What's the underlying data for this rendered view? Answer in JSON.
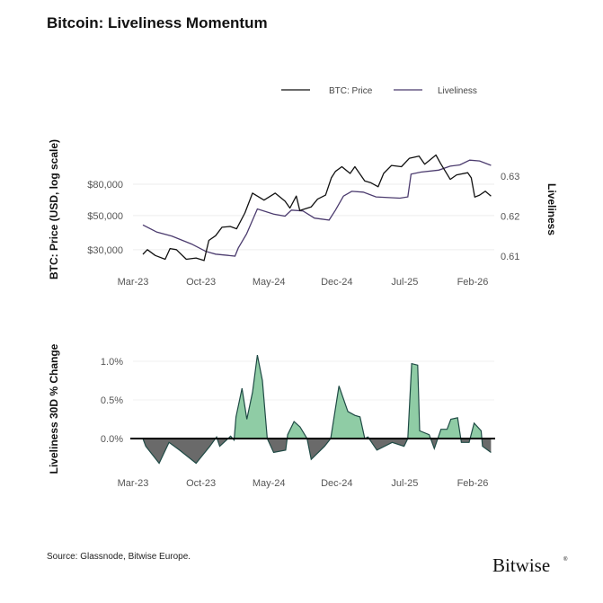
{
  "title": "Bitcoin: Liveliness Momentum",
  "source": "Source: Glassnode, Bitwise Europe.",
  "logo": "Bitwise",
  "colors": {
    "price": "#111111",
    "liveliness": "#4b3b6e",
    "positive": "#8fcca5",
    "negative": "#6a6a6a",
    "outline": "#1f4a45"
  },
  "chart_data": [
    {
      "type": "line",
      "legend": [
        "BTC: Price",
        "Liveliness"
      ],
      "legend_position": "top-right",
      "ylabel": "BTC: Price (USD, log scale)",
      "y2label": "Liveliness",
      "yscale": "log",
      "xticks": [
        "Mar-23",
        "Oct-23",
        "May-24",
        "Dec-24",
        "Jul-25",
        "Feb-26"
      ],
      "yticks": [
        "$30,000",
        "$50,000",
        "$80,000"
      ],
      "yticks_values": [
        30000,
        50000,
        80000
      ],
      "y2ticks": [
        "0.61",
        "0.62",
        "0.63"
      ],
      "y2ticks_values": [
        0.61,
        0.62,
        0.63
      ],
      "grid": "horizontal",
      "series": [
        {
          "name": "BTC: Price",
          "axis": "left",
          "points": [
            [
              "2023-04-01",
              28000
            ],
            [
              "2023-04-15",
              30000
            ],
            [
              "2023-05-10",
              27500
            ],
            [
              "2023-06-10",
              26000
            ],
            [
              "2023-06-25",
              30500
            ],
            [
              "2023-07-15",
              30000
            ],
            [
              "2023-08-15",
              26000
            ],
            [
              "2023-09-15",
              26500
            ],
            [
              "2023-10-10",
              25500
            ],
            [
              "2023-10-25",
              34500
            ],
            [
              "2023-11-15",
              37000
            ],
            [
              "2023-12-05",
              42000
            ],
            [
              "2023-12-31",
              42500
            ],
            [
              "2024-01-20",
              41000
            ],
            [
              "2024-02-15",
              52000
            ],
            [
              "2024-03-10",
              70000
            ],
            [
              "2024-04-15",
              63000
            ],
            [
              "2024-05-20",
              70000
            ],
            [
              "2024-06-20",
              62000
            ],
            [
              "2024-07-05",
              56000
            ],
            [
              "2024-07-25",
              67000
            ],
            [
              "2024-08-05",
              54000
            ],
            [
              "2024-09-10",
              57000
            ],
            [
              "2024-09-30",
              64000
            ],
            [
              "2024-10-25",
              68000
            ],
            [
              "2024-11-12",
              88000
            ],
            [
              "2024-11-25",
              97000
            ],
            [
              "2024-12-15",
              104000
            ],
            [
              "2025-01-10",
              94000
            ],
            [
              "2025-01-25",
              104000
            ],
            [
              "2025-02-25",
              84000
            ],
            [
              "2025-03-15",
              82000
            ],
            [
              "2025-04-08",
              77000
            ],
            [
              "2025-04-25",
              94000
            ],
            [
              "2025-05-20",
              106000
            ],
            [
              "2025-06-20",
              104000
            ],
            [
              "2025-07-15",
              118000
            ],
            [
              "2025-08-14",
              122000
            ],
            [
              "2025-09-01",
              108000
            ],
            [
              "2025-10-06",
              124000
            ],
            [
              "2025-10-20",
              110000
            ],
            [
              "2025-11-20",
              86000
            ],
            [
              "2025-12-10",
              92000
            ],
            [
              "2026-01-14",
              95000
            ],
            [
              "2026-01-25",
              88000
            ],
            [
              "2026-02-05",
              66000
            ],
            [
              "2026-02-20",
              68000
            ],
            [
              "2026-03-10",
              72000
            ],
            [
              "2026-03-28",
              67000
            ]
          ]
        },
        {
          "name": "Liveliness",
          "axis": "right",
          "points": [
            [
              "2023-04-01",
              0.6178
            ],
            [
              "2023-05-15",
              0.616
            ],
            [
              "2023-07-01",
              0.615
            ],
            [
              "2023-09-01",
              0.613
            ],
            [
              "2023-10-15",
              0.6112
            ],
            [
              "2023-11-15",
              0.6105
            ],
            [
              "2024-01-15",
              0.61
            ],
            [
              "2024-01-25",
              0.612
            ],
            [
              "2024-02-20",
              0.6155
            ],
            [
              "2024-03-25",
              0.6218
            ],
            [
              "2024-05-15",
              0.6205
            ],
            [
              "2024-06-20",
              0.62
            ],
            [
              "2024-07-10",
              0.6215
            ],
            [
              "2024-08-15",
              0.6213
            ],
            [
              "2024-09-20",
              0.6195
            ],
            [
              "2024-11-05",
              0.619
            ],
            [
              "2024-11-25",
              0.6215
            ],
            [
              "2024-12-20",
              0.625
            ],
            [
              "2025-01-15",
              0.6262
            ],
            [
              "2025-02-20",
              0.626
            ],
            [
              "2025-04-01",
              0.6248
            ],
            [
              "2025-06-15",
              0.6245
            ],
            [
              "2025-07-10",
              0.6248
            ],
            [
              "2025-07-20",
              0.6305
            ],
            [
              "2025-08-20",
              0.631
            ],
            [
              "2025-10-15",
              0.6315
            ],
            [
              "2025-11-20",
              0.6325
            ],
            [
              "2025-12-20",
              0.6328
            ],
            [
              "2026-01-20",
              0.634
            ],
            [
              "2026-02-20",
              0.6338
            ],
            [
              "2026-03-28",
              0.6327
            ]
          ]
        }
      ]
    },
    {
      "type": "area",
      "ylabel": "Liveliness 30D % Change",
      "xticks": [
        "Mar-23",
        "Oct-23",
        "May-24",
        "Dec-24",
        "Jul-25",
        "Feb-26"
      ],
      "yticks": [
        "0.0%",
        "0.5%",
        "1.0%"
      ],
      "yticks_values": [
        0,
        0.5,
        1.0
      ],
      "grid": "horizontal",
      "points": [
        [
          "2023-04-01",
          0
        ],
        [
          "2023-04-10",
          -0.1
        ],
        [
          "2023-05-22",
          -0.32
        ],
        [
          "2023-06-22",
          -0.05
        ],
        [
          "2023-07-25",
          -0.15
        ],
        [
          "2023-09-15",
          -0.32
        ],
        [
          "2023-10-28",
          -0.1
        ],
        [
          "2023-11-18",
          0.02
        ],
        [
          "2023-11-28",
          -0.1
        ],
        [
          "2024-01-01",
          0.03
        ],
        [
          "2024-01-12",
          -0.02
        ],
        [
          "2024-01-18",
          0.28
        ],
        [
          "2024-02-06",
          0.65
        ],
        [
          "2024-02-21",
          0.25
        ],
        [
          "2024-03-10",
          0.6
        ],
        [
          "2024-03-25",
          1.08
        ],
        [
          "2024-04-10",
          0.75
        ],
        [
          "2024-04-25",
          0.0
        ],
        [
          "2024-05-15",
          -0.18
        ],
        [
          "2024-06-22",
          -0.15
        ],
        [
          "2024-06-28",
          0.05
        ],
        [
          "2024-07-18",
          0.22
        ],
        [
          "2024-08-06",
          0.15
        ],
        [
          "2024-08-28",
          0.0
        ],
        [
          "2024-09-10",
          -0.27
        ],
        [
          "2024-10-22",
          -0.1
        ],
        [
          "2024-11-10",
          0.0
        ],
        [
          "2024-12-06",
          0.68
        ],
        [
          "2025-01-03",
          0.35
        ],
        [
          "2025-01-25",
          0.3
        ],
        [
          "2025-02-10",
          0.28
        ],
        [
          "2025-02-25",
          0.0
        ],
        [
          "2025-03-07",
          0.02
        ],
        [
          "2025-04-04",
          -0.15
        ],
        [
          "2025-05-22",
          -0.05
        ],
        [
          "2025-06-28",
          -0.1
        ],
        [
          "2025-07-10",
          0.0
        ],
        [
          "2025-07-22",
          0.97
        ],
        [
          "2025-08-10",
          0.95
        ],
        [
          "2025-08-16",
          0.1
        ],
        [
          "2025-09-15",
          0.05
        ],
        [
          "2025-10-01",
          -0.13
        ],
        [
          "2025-10-22",
          0.12
        ],
        [
          "2025-11-10",
          0.12
        ],
        [
          "2025-11-22",
          0.25
        ],
        [
          "2025-12-13",
          0.27
        ],
        [
          "2025-12-25",
          -0.05
        ],
        [
          "2026-01-18",
          -0.05
        ],
        [
          "2026-02-03",
          0.2
        ],
        [
          "2026-02-25",
          0.1
        ],
        [
          "2026-03-01",
          -0.1
        ],
        [
          "2026-03-28",
          -0.18
        ]
      ]
    }
  ]
}
